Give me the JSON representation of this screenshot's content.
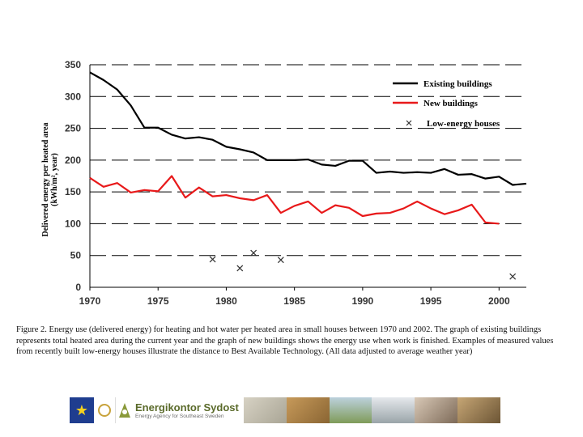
{
  "chart_data": {
    "type": "line",
    "ylabel_line1": "Delivered energy per heated area",
    "ylabel_line2": "(kWh/m², year)",
    "xlim": [
      1970,
      2002
    ],
    "ylim": [
      0,
      350
    ],
    "x_ticks": [
      "1970",
      "1975",
      "1980",
      "1985",
      "1990",
      "1995",
      "2000"
    ],
    "y_ticks": [
      "0",
      "50",
      "100",
      "150",
      "200",
      "250",
      "300",
      "350"
    ],
    "grid": "horizontal dashed",
    "legend_position": "top-right",
    "series": [
      {
        "name": "Existing buildings",
        "style": "line",
        "color": "#000000",
        "x": [
          1970,
          1971,
          1972,
          1973,
          1974,
          1975,
          1976,
          1977,
          1978,
          1979,
          1980,
          1981,
          1982,
          1983,
          1984,
          1985,
          1986,
          1987,
          1988,
          1989,
          1990,
          1991,
          1992,
          1993,
          1994,
          1995,
          1996,
          1997,
          1998,
          1999,
          2000,
          2001,
          2002
        ],
        "y": [
          338,
          326,
          311,
          286,
          251,
          251,
          240,
          234,
          236,
          232,
          221,
          217,
          212,
          200,
          200,
          200,
          201,
          193,
          191,
          199,
          199,
          180,
          182,
          180,
          181,
          180,
          186,
          177,
          178,
          171,
          174,
          161,
          163
        ]
      },
      {
        "name": "New buildings",
        "style": "line",
        "color": "#e8191a",
        "x": [
          1970,
          1971,
          1972,
          1973,
          1974,
          1975,
          1976,
          1977,
          1978,
          1979,
          1980,
          1981,
          1982,
          1983,
          1984,
          1985,
          1986,
          1987,
          1988,
          1989,
          1990,
          1991,
          1992,
          1993,
          1994,
          1995,
          1996,
          1997,
          1998,
          1999,
          2000
        ],
        "y": [
          172,
          158,
          164,
          149,
          153,
          151,
          175,
          141,
          157,
          143,
          145,
          140,
          137,
          145,
          117,
          128,
          135,
          117,
          129,
          125,
          112,
          116,
          117,
          124,
          135,
          124,
          115,
          121,
          130,
          102,
          100
        ]
      },
      {
        "name": "Low-energy houses",
        "style": "scatter",
        "marker": "x",
        "color": "#333333",
        "x": [
          1979,
          1981,
          1982,
          1984,
          2001
        ],
        "y": [
          44,
          30,
          54,
          43,
          17
        ]
      }
    ]
  },
  "caption": "Figure 2. Energy use (delivered energy) for heating and hot water per heated area in small houses between 1970 and 2002. The graph of existing buildings represents total heated area during the current year and the graph of new buildings shows the energy use when work is finished. Examples of measured values from recently built low-energy houses illustrate the distance to Best Available Technology. (All data adjusted to average weather year)",
  "banner": {
    "title": "Energikontor Sydost",
    "subtitle": "Energy Agency for Southeast Sweden",
    "flag_color": "#1f3d8f",
    "logo_green": "#5a6a2a"
  }
}
